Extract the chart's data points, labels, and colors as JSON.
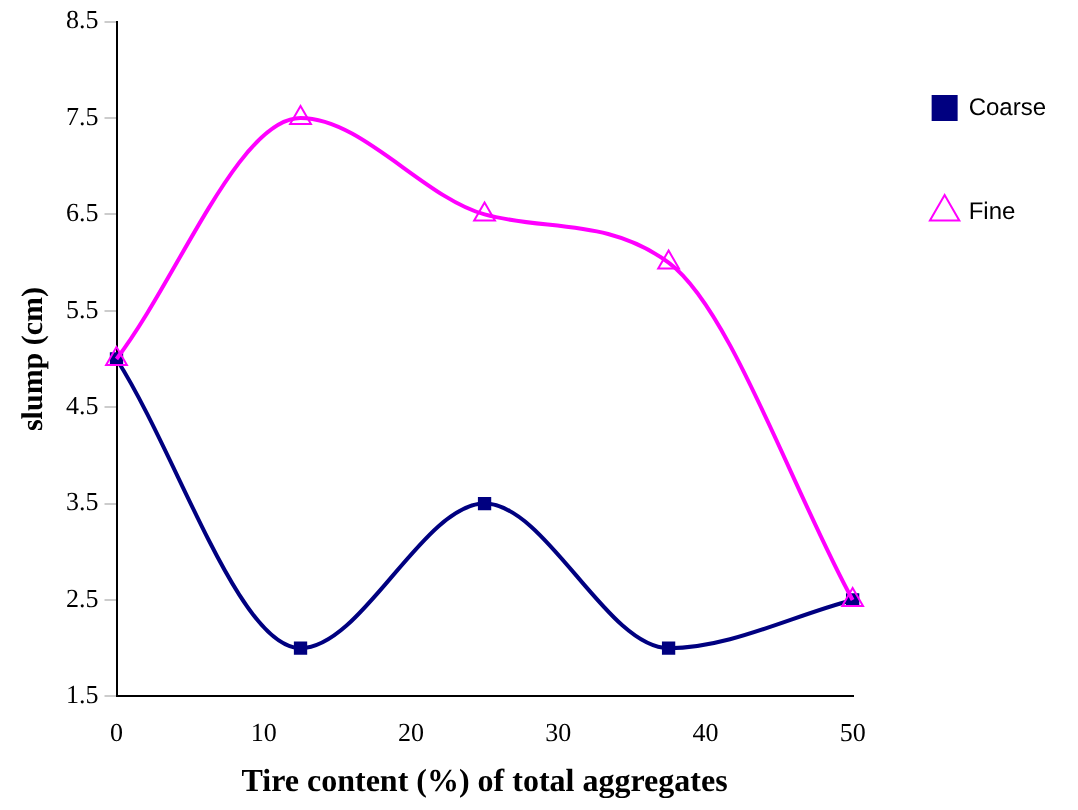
{
  "chart_data": {
    "type": "line",
    "xlabel": "Tire content (%) of total aggregates",
    "ylabel": "slump (cm)",
    "x": [
      0,
      12.5,
      25,
      37.5,
      50
    ],
    "series": [
      {
        "name": "Coarse",
        "color": "#000080",
        "marker": "square",
        "values": [
          5,
          2,
          3.5,
          2,
          2.5
        ]
      },
      {
        "name": "Fine",
        "color": "#ff00ff",
        "marker": "triangle",
        "values": [
          5,
          7.5,
          6.5,
          6,
          2.5
        ]
      }
    ],
    "xlim": [
      0,
      50
    ],
    "xticks": [
      0,
      10,
      20,
      30,
      40,
      50
    ],
    "ylim": [
      1.5,
      8.5
    ],
    "yticks": [
      1.5,
      2.5,
      3.5,
      4.5,
      5.5,
      6.5,
      7.5,
      8.5
    ],
    "grid": false,
    "legend": "top right",
    "line_style": "solid"
  }
}
